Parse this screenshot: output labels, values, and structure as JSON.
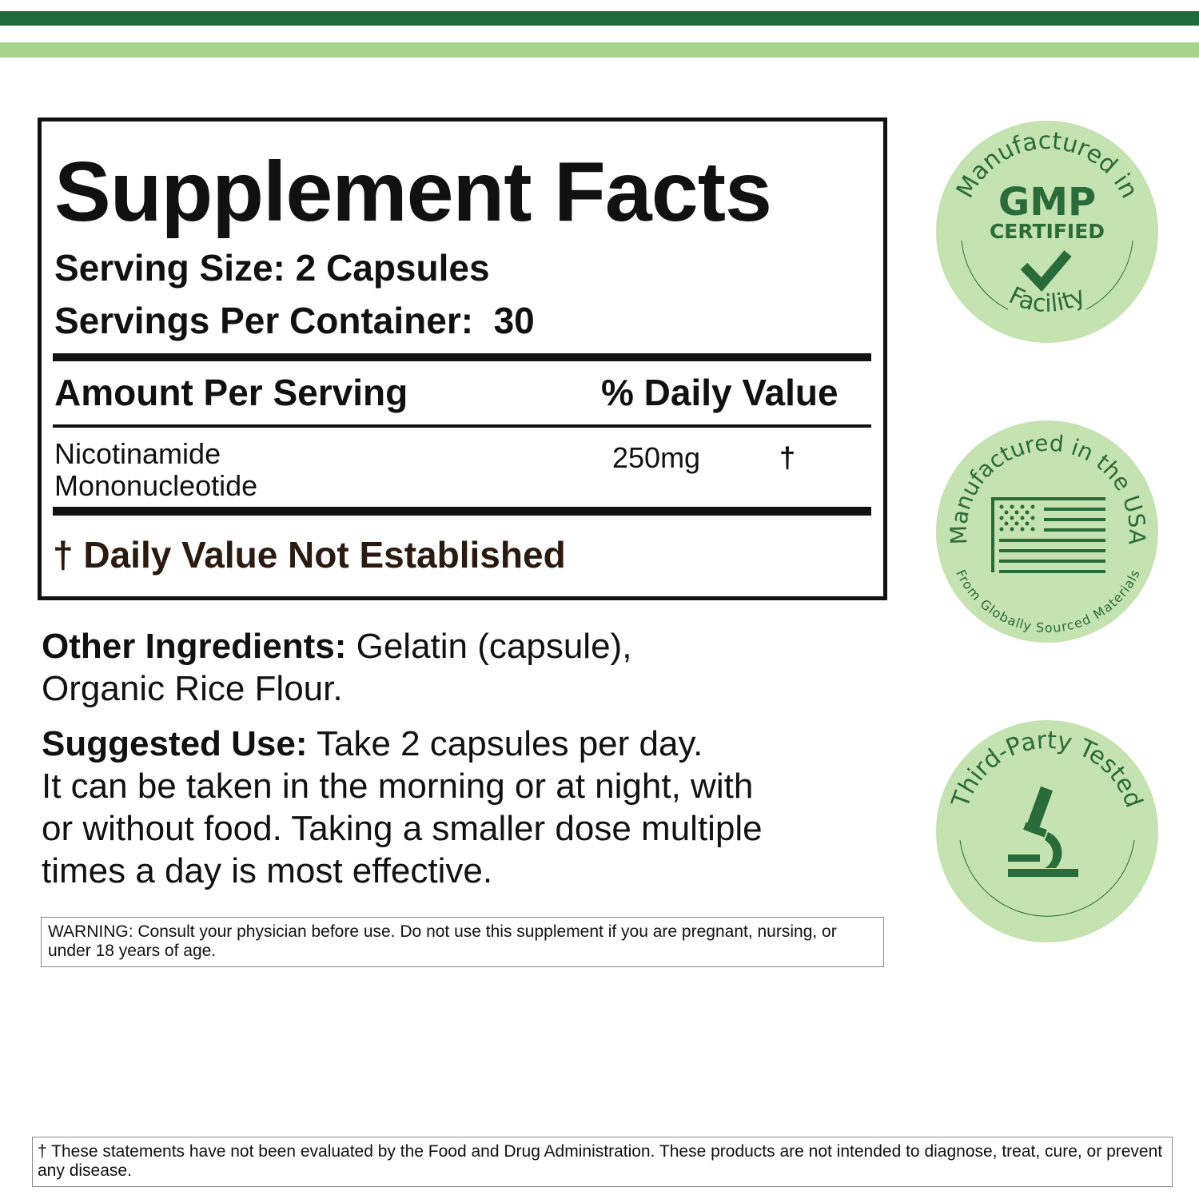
{
  "colors": {
    "dark_green": "#1f6a3a",
    "light_green": "#a6d48f",
    "badge_bg": "#c5e3b0",
    "badge_ink": "#2a6b3a"
  },
  "facts": {
    "title": "Supplement Facts",
    "serving_size": "Serving Size: 2 Capsules",
    "servings_per_container": "Servings Per Container:  30",
    "amount_header": "Amount Per Serving",
    "dv_header": "% Daily Value",
    "ingredient": {
      "name_line1": "Nicotinamide",
      "name_line2": "Mononucleotide",
      "amount": "250mg",
      "dv": "†"
    },
    "footnote": "† Daily Value Not Established"
  },
  "other_ingredients": {
    "label": "Other Ingredients:",
    "text1": " Gelatin (capsule),",
    "text2": "Organic Rice Flour."
  },
  "suggested_use": {
    "label": "Suggested Use:",
    "line1": " Take 2 capsules per day.",
    "line2": "It can be taken in the morning or at night, with",
    "line3": "or without food. Taking a smaller dose multiple",
    "line4": "times a day is most effective."
  },
  "warning": "WARNING: Consult your physician before use. Do not use this supplement if you are pregnant, nursing, or under 18 years of age.",
  "disclaimer": "† These statements have not been evaluated by the Food and Drug Administration. These products are not intended to diagnose, treat, cure, or prevent any disease.",
  "badges": [
    {
      "icon": "checkmark-icon",
      "top": "Manufactured in",
      "center1": "GMP",
      "center2": "CERTIFIED",
      "bottom": "Facility"
    },
    {
      "icon": "us-flag-icon",
      "top": "Manufactured in the USA",
      "bottom": "From Globally Sourced Materials"
    },
    {
      "icon": "microscope-icon",
      "top": "Third-Party Tested"
    }
  ]
}
